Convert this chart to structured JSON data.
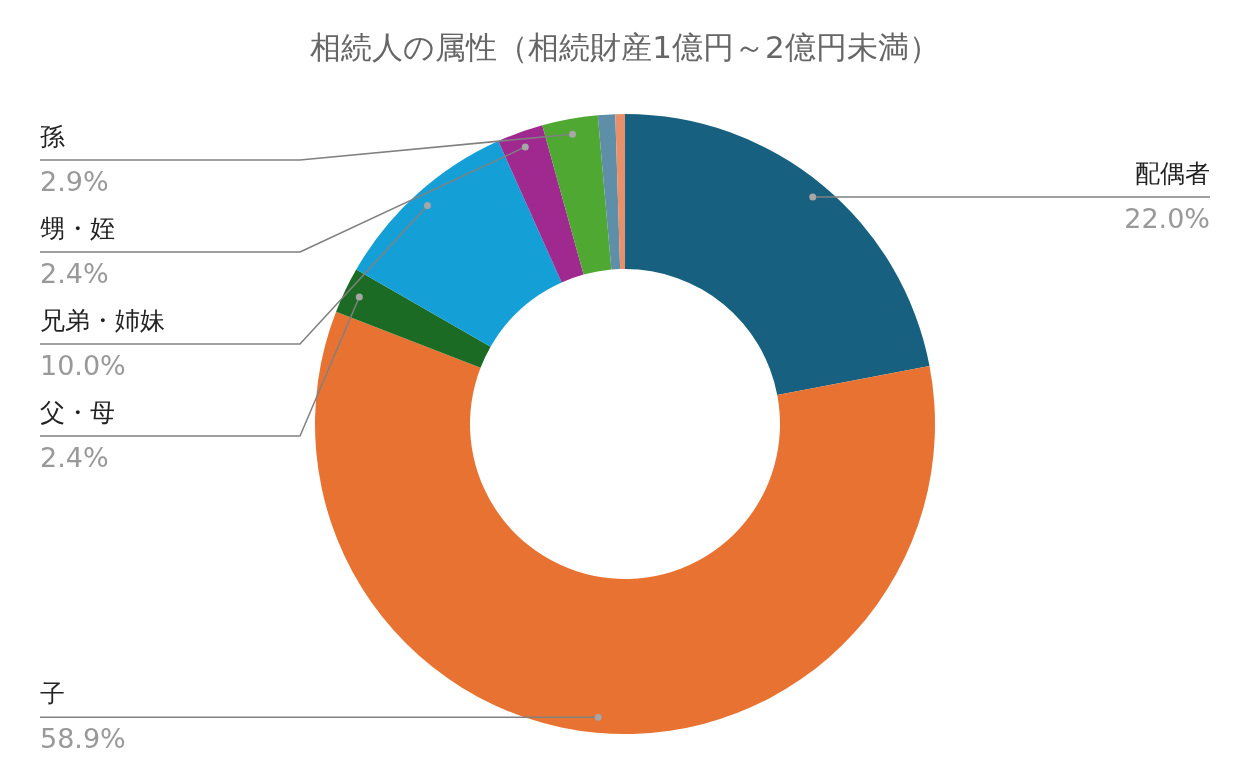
{
  "chart_data": {
    "type": "donut",
    "title": "相続人の属性（相続財産1億円～2億円未満）",
    "categories": [
      "配偶者",
      "子",
      "父・母",
      "兄弟・姉妹",
      "甥・姪",
      "孫",
      null,
      null
    ],
    "values": [
      22.0,
      58.9,
      2.4,
      10.0,
      2.4,
      2.9,
      0.9,
      0.5
    ],
    "value_labels": [
      "22.0%",
      "58.9%",
      "2.4%",
      "10.0%",
      "2.4%",
      "2.9%",
      null,
      null
    ],
    "colors": [
      "#17607f",
      "#e87232",
      "#1b6b24",
      "#14a0d6",
      "#a0298f",
      "#4ea832",
      "#5f8fa8",
      "#e8906a"
    ]
  }
}
